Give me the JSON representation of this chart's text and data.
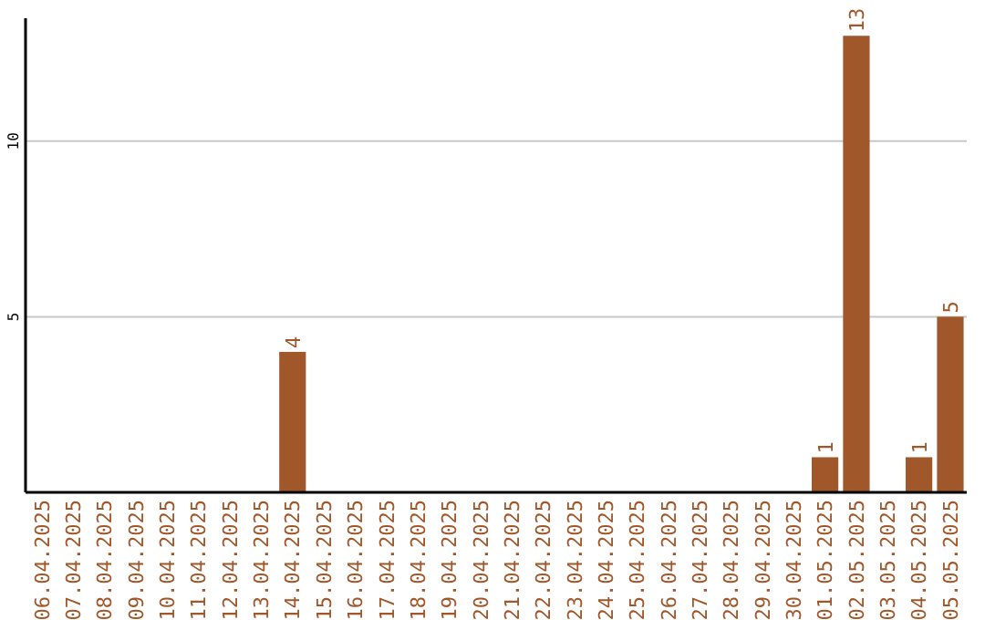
{
  "chart_data": {
    "type": "bar",
    "categories": [
      "06.04.2025",
      "07.04.2025",
      "08.04.2025",
      "09.04.2025",
      "10.04.2025",
      "11.04.2025",
      "12.04.2025",
      "13.04.2025",
      "14.04.2025",
      "15.04.2025",
      "16.04.2025",
      "17.04.2025",
      "18.04.2025",
      "19.04.2025",
      "20.04.2025",
      "21.04.2025",
      "22.04.2025",
      "23.04.2025",
      "24.04.2025",
      "25.04.2025",
      "26.04.2025",
      "27.04.2025",
      "28.04.2025",
      "29.04.2025",
      "30.04.2025",
      "01.05.2025",
      "02.05.2025",
      "03.05.2025",
      "04.05.2025",
      "05.05.2025"
    ],
    "values": [
      0,
      0,
      0,
      0,
      0,
      0,
      0,
      0,
      4,
      0,
      0,
      0,
      0,
      0,
      0,
      0,
      0,
      0,
      0,
      0,
      0,
      0,
      0,
      0,
      0,
      1,
      13,
      0,
      1,
      5
    ],
    "value_labels": [
      null,
      null,
      null,
      null,
      null,
      null,
      null,
      null,
      "4",
      null,
      null,
      null,
      null,
      null,
      null,
      null,
      null,
      null,
      null,
      null,
      null,
      null,
      null,
      null,
      null,
      "1",
      "13",
      null,
      "1",
      "5"
    ],
    "color": "#a0572a",
    "ylim": [
      0,
      13.5
    ],
    "yticks": [
      5,
      10
    ],
    "grid": "y"
  }
}
